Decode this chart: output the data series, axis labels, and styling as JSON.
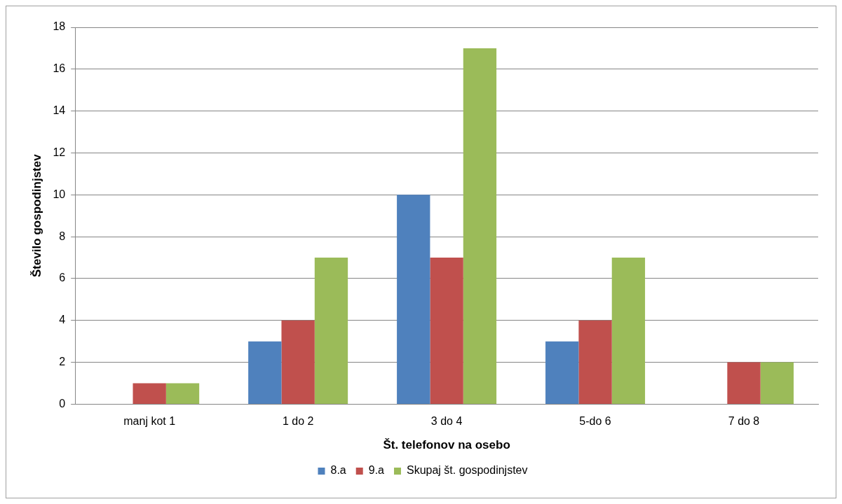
{
  "chart_data": {
    "type": "bar",
    "xlabel": "Št. telefonov na osebo",
    "ylabel": "Število gospodinjstev",
    "categories": [
      "manj kot 1",
      "1 do 2",
      "3 do 4",
      "5-do 6",
      "7 do 8"
    ],
    "series": [
      {
        "name": "8.a",
        "color": "#4f81bd",
        "values": [
          0,
          3,
          10,
          3,
          0
        ]
      },
      {
        "name": "9.a",
        "color": "#c0504d",
        "values": [
          1,
          4,
          7,
          4,
          2
        ]
      },
      {
        "name": "Skupaj št. gospodinjstev",
        "color": "#9bbb59",
        "values": [
          1,
          7,
          17,
          7,
          2
        ]
      }
    ],
    "ylim": [
      0,
      18
    ],
    "yticks": [
      0,
      2,
      4,
      6,
      8,
      10,
      12,
      14,
      16,
      18
    ],
    "grid": "y",
    "legend": "bottom"
  }
}
